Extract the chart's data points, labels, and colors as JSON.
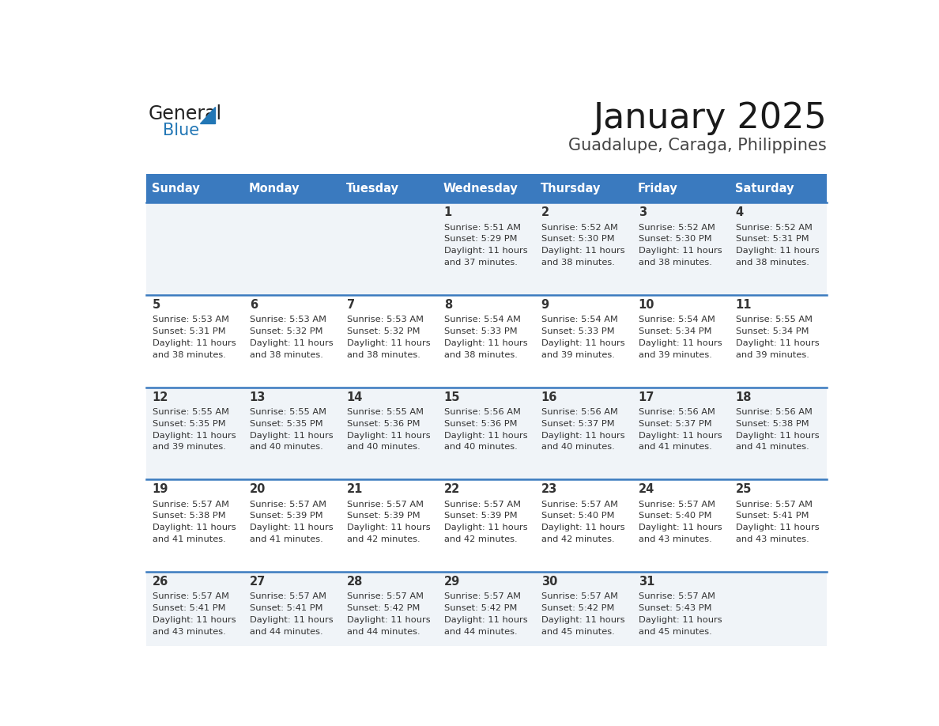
{
  "title": "January 2025",
  "subtitle": "Guadalupe, Caraga, Philippines",
  "header_color": "#3a7abf",
  "header_text_color": "#ffffff",
  "day_names": [
    "Sunday",
    "Monday",
    "Tuesday",
    "Wednesday",
    "Thursday",
    "Friday",
    "Saturday"
  ],
  "row_colors": [
    "#f0f4f8",
    "#ffffff"
  ],
  "separator_color": "#3a7abf",
  "text_color": "#333333",
  "logo_general_color": "#222222",
  "logo_blue_color": "#2176b5",
  "calendar": [
    [
      {
        "day": null,
        "sunrise": null,
        "sunset": null,
        "daylight": null
      },
      {
        "day": null,
        "sunrise": null,
        "sunset": null,
        "daylight": null
      },
      {
        "day": null,
        "sunrise": null,
        "sunset": null,
        "daylight": null
      },
      {
        "day": "1",
        "sunrise": "5:51 AM",
        "sunset": "5:29 PM",
        "daylight": "11 hours and 37 minutes."
      },
      {
        "day": "2",
        "sunrise": "5:52 AM",
        "sunset": "5:30 PM",
        "daylight": "11 hours and 38 minutes."
      },
      {
        "day": "3",
        "sunrise": "5:52 AM",
        "sunset": "5:30 PM",
        "daylight": "11 hours and 38 minutes."
      },
      {
        "day": "4",
        "sunrise": "5:52 AM",
        "sunset": "5:31 PM",
        "daylight": "11 hours and 38 minutes."
      }
    ],
    [
      {
        "day": "5",
        "sunrise": "5:53 AM",
        "sunset": "5:31 PM",
        "daylight": "11 hours and 38 minutes."
      },
      {
        "day": "6",
        "sunrise": "5:53 AM",
        "sunset": "5:32 PM",
        "daylight": "11 hours and 38 minutes."
      },
      {
        "day": "7",
        "sunrise": "5:53 AM",
        "sunset": "5:32 PM",
        "daylight": "11 hours and 38 minutes."
      },
      {
        "day": "8",
        "sunrise": "5:54 AM",
        "sunset": "5:33 PM",
        "daylight": "11 hours and 38 minutes."
      },
      {
        "day": "9",
        "sunrise": "5:54 AM",
        "sunset": "5:33 PM",
        "daylight": "11 hours and 39 minutes."
      },
      {
        "day": "10",
        "sunrise": "5:54 AM",
        "sunset": "5:34 PM",
        "daylight": "11 hours and 39 minutes."
      },
      {
        "day": "11",
        "sunrise": "5:55 AM",
        "sunset": "5:34 PM",
        "daylight": "11 hours and 39 minutes."
      }
    ],
    [
      {
        "day": "12",
        "sunrise": "5:55 AM",
        "sunset": "5:35 PM",
        "daylight": "11 hours and 39 minutes."
      },
      {
        "day": "13",
        "sunrise": "5:55 AM",
        "sunset": "5:35 PM",
        "daylight": "11 hours and 40 minutes."
      },
      {
        "day": "14",
        "sunrise": "5:55 AM",
        "sunset": "5:36 PM",
        "daylight": "11 hours and 40 minutes."
      },
      {
        "day": "15",
        "sunrise": "5:56 AM",
        "sunset": "5:36 PM",
        "daylight": "11 hours and 40 minutes."
      },
      {
        "day": "16",
        "sunrise": "5:56 AM",
        "sunset": "5:37 PM",
        "daylight": "11 hours and 40 minutes."
      },
      {
        "day": "17",
        "sunrise": "5:56 AM",
        "sunset": "5:37 PM",
        "daylight": "11 hours and 41 minutes."
      },
      {
        "day": "18",
        "sunrise": "5:56 AM",
        "sunset": "5:38 PM",
        "daylight": "11 hours and 41 minutes."
      }
    ],
    [
      {
        "day": "19",
        "sunrise": "5:57 AM",
        "sunset": "5:38 PM",
        "daylight": "11 hours and 41 minutes."
      },
      {
        "day": "20",
        "sunrise": "5:57 AM",
        "sunset": "5:39 PM",
        "daylight": "11 hours and 41 minutes."
      },
      {
        "day": "21",
        "sunrise": "5:57 AM",
        "sunset": "5:39 PM",
        "daylight": "11 hours and 42 minutes."
      },
      {
        "day": "22",
        "sunrise": "5:57 AM",
        "sunset": "5:39 PM",
        "daylight": "11 hours and 42 minutes."
      },
      {
        "day": "23",
        "sunrise": "5:57 AM",
        "sunset": "5:40 PM",
        "daylight": "11 hours and 42 minutes."
      },
      {
        "day": "24",
        "sunrise": "5:57 AM",
        "sunset": "5:40 PM",
        "daylight": "11 hours and 43 minutes."
      },
      {
        "day": "25",
        "sunrise": "5:57 AM",
        "sunset": "5:41 PM",
        "daylight": "11 hours and 43 minutes."
      }
    ],
    [
      {
        "day": "26",
        "sunrise": "5:57 AM",
        "sunset": "5:41 PM",
        "daylight": "11 hours and 43 minutes."
      },
      {
        "day": "27",
        "sunrise": "5:57 AM",
        "sunset": "5:41 PM",
        "daylight": "11 hours and 44 minutes."
      },
      {
        "day": "28",
        "sunrise": "5:57 AM",
        "sunset": "5:42 PM",
        "daylight": "11 hours and 44 minutes."
      },
      {
        "day": "29",
        "sunrise": "5:57 AM",
        "sunset": "5:42 PM",
        "daylight": "11 hours and 44 minutes."
      },
      {
        "day": "30",
        "sunrise": "5:57 AM",
        "sunset": "5:42 PM",
        "daylight": "11 hours and 45 minutes."
      },
      {
        "day": "31",
        "sunrise": "5:57 AM",
        "sunset": "5:43 PM",
        "daylight": "11 hours and 45 minutes."
      },
      {
        "day": null,
        "sunrise": null,
        "sunset": null,
        "daylight": null
      }
    ]
  ]
}
